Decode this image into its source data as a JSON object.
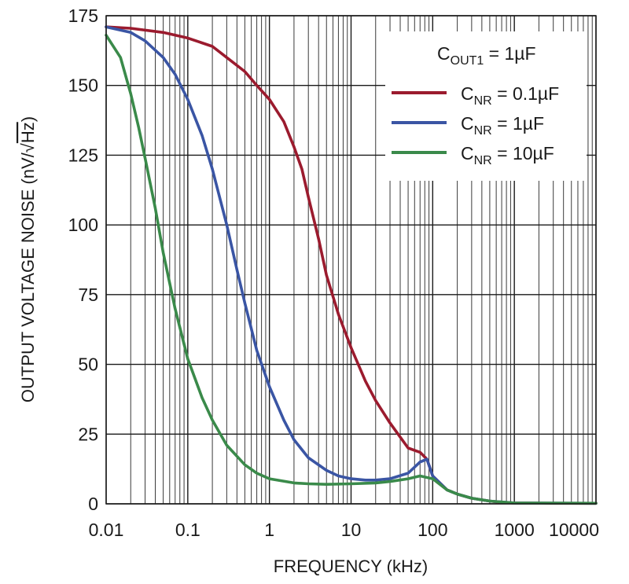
{
  "chart_data": {
    "type": "line",
    "xscale": "log",
    "xlim": [
      0.01,
      10000
    ],
    "ylim": [
      0,
      175
    ],
    "grid": true,
    "xlabel": "FREQUENCY (kHz)",
    "ylabel": {
      "main": "OUTPUT VOLTAGE NOISE (nV/",
      "radicand": "Hz",
      "close": ")"
    },
    "xticks": [
      0.01,
      0.1,
      1,
      10,
      100,
      1000,
      10000
    ],
    "xtick_labels": [
      "0.01",
      "0.1",
      "1",
      "10",
      "100",
      "1000",
      "10000"
    ],
    "yticks": [
      0,
      25,
      50,
      75,
      100,
      125,
      150,
      175
    ],
    "ytick_labels": [
      "0",
      "25",
      "50",
      "75",
      "100",
      "125",
      "150",
      "175"
    ],
    "legend": {
      "placement": "top-right",
      "header": {
        "main": "C",
        "sub": "OUT1",
        "rest": " = 1µF"
      }
    },
    "series": [
      {
        "label_main": "C",
        "label_sub": "NR",
        "label_rest": " = 0.1µF",
        "color": "#9b1b2e",
        "x": [
          0.01,
          0.02,
          0.05,
          0.1,
          0.2,
          0.3,
          0.5,
          0.7,
          1,
          1.5,
          2,
          2.5,
          3,
          4,
          5,
          7,
          10,
          15,
          20,
          30,
          50,
          70,
          85,
          100,
          150,
          200,
          300,
          500,
          700,
          1000,
          3000,
          10000
        ],
        "y": [
          171,
          170.5,
          169,
          167,
          164,
          160,
          155,
          150,
          145,
          137,
          128,
          120,
          110,
          95,
          82,
          68,
          56,
          44,
          37,
          29,
          20,
          18.5,
          16,
          10,
          5,
          3.5,
          2,
          1,
          0.5,
          0.3,
          0.2,
          0.2
        ]
      },
      {
        "label_main": "C",
        "label_sub": "NR",
        "label_rest": " = 1µF",
        "color": "#3a55a4",
        "x": [
          0.01,
          0.02,
          0.03,
          0.05,
          0.07,
          0.1,
          0.15,
          0.2,
          0.3,
          0.4,
          0.5,
          0.7,
          1,
          1.5,
          2,
          3,
          5,
          7,
          10,
          15,
          20,
          30,
          50,
          70,
          85,
          100,
          150,
          200,
          300,
          500,
          1000,
          10000
        ],
        "y": [
          171,
          169,
          166,
          160,
          154,
          145,
          132,
          120,
          100,
          84,
          72,
          55,
          42,
          30,
          23,
          16.5,
          12,
          10,
          9,
          8.5,
          8.5,
          9,
          11,
          15,
          16,
          10,
          5,
          3.5,
          2,
          1,
          0.3,
          0.2
        ]
      },
      {
        "label_main": "C",
        "label_sub": "NR",
        "label_rest": " = 10µF",
        "color": "#3a8a4a",
        "x": [
          0.01,
          0.015,
          0.02,
          0.025,
          0.03,
          0.04,
          0.05,
          0.07,
          0.1,
          0.15,
          0.2,
          0.3,
          0.5,
          0.7,
          1,
          2,
          3,
          5,
          10,
          20,
          30,
          50,
          70,
          100,
          150,
          200,
          300,
          500,
          1000,
          10000
        ],
        "y": [
          168,
          160,
          147,
          135,
          124,
          106,
          90,
          70,
          52,
          38,
          30,
          21,
          14,
          11,
          9,
          7.5,
          7.2,
          7,
          7.2,
          7.5,
          8,
          9,
          10,
          9,
          5,
          3.5,
          2,
          1,
          0.3,
          0.2
        ]
      }
    ]
  }
}
